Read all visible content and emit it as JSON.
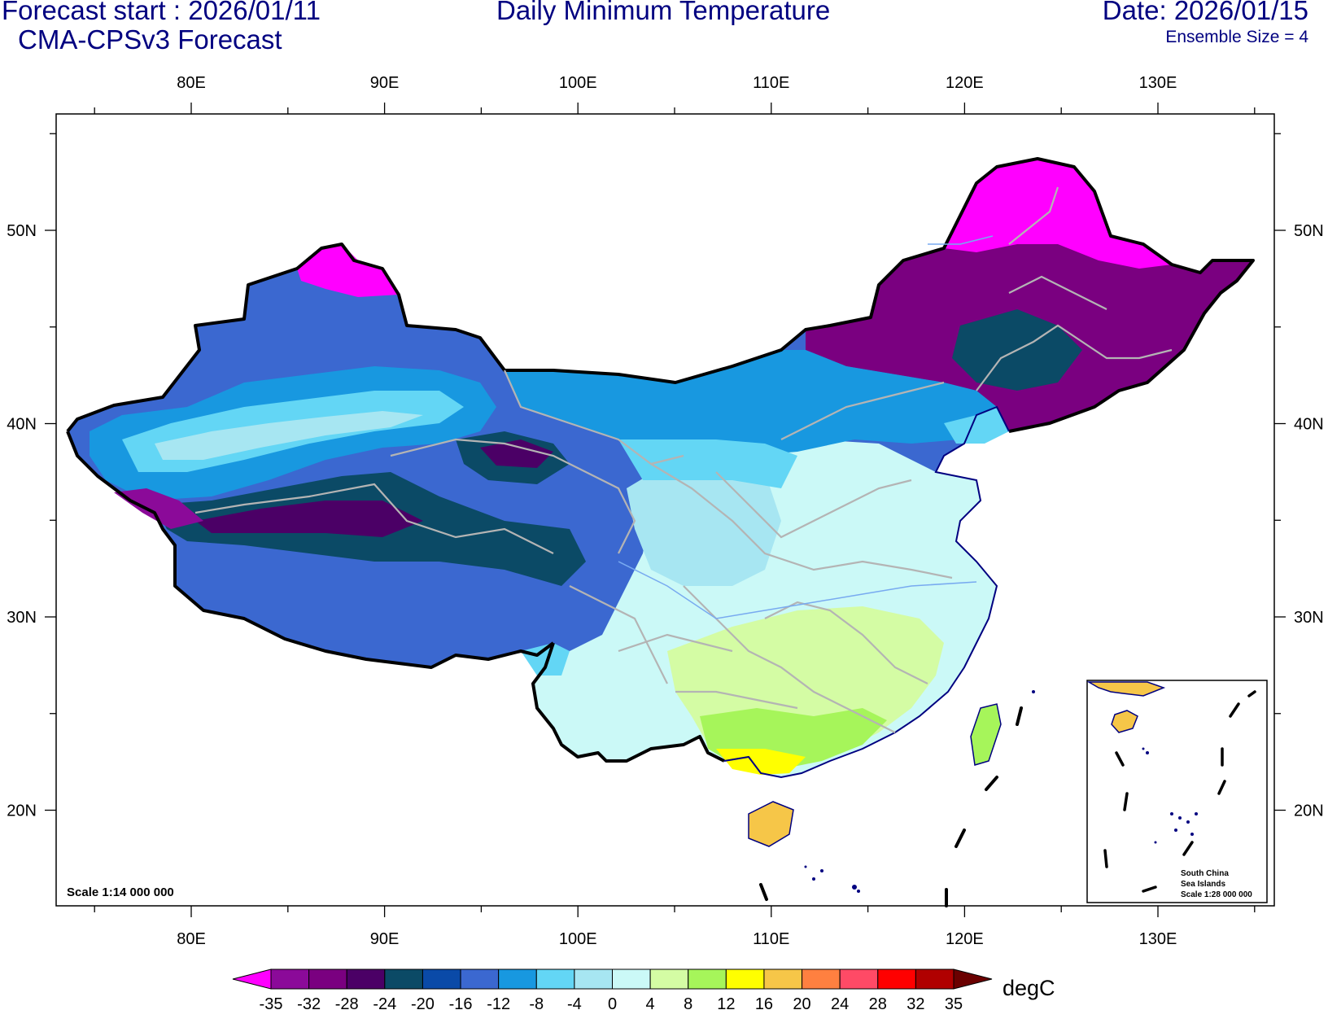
{
  "header": {
    "forecast_start": "Forecast start : 2026/01/11",
    "model": "CMA-CPSv3 Forecast",
    "title": "Daily Minimum Temperature",
    "date": "Date: 2026/01/15",
    "ensemble": "Ensemble Size = 4"
  },
  "axes": {
    "lon_labels": [
      "80E",
      "90E",
      "100E",
      "110E",
      "120E",
      "130E"
    ],
    "lat_labels": [
      "50N",
      "40N",
      "30N",
      "20N"
    ]
  },
  "scale_main": "Scale 1:14 000 000",
  "inset": {
    "line1": "South China",
    "line2": "Sea Islands",
    "line3": "Scale 1:28 000 000"
  },
  "colorbar": {
    "unit": "degC",
    "labels": [
      "-35",
      "-32",
      "-28",
      "-24",
      "-20",
      "-16",
      "-12",
      "-8",
      "-4",
      "0",
      "4",
      "8",
      "12",
      "16",
      "20",
      "24",
      "28",
      "32",
      "35"
    ],
    "colors": [
      "#8b0a99",
      "#7a0080",
      "#4b0066",
      "#0b4a66",
      "#0a4aa8",
      "#3b68d0",
      "#1898e0",
      "#63d6f5",
      "#a7e6f2",
      "#cbf9f7",
      "#d4fca4",
      "#a6f55a",
      "#ffff00",
      "#f6c648",
      "#ff8040",
      "#ff4a66",
      "#ff0000",
      "#b00000"
    ],
    "low_end_color": "#ff00ff",
    "high_end_color": "#6b0000"
  }
}
